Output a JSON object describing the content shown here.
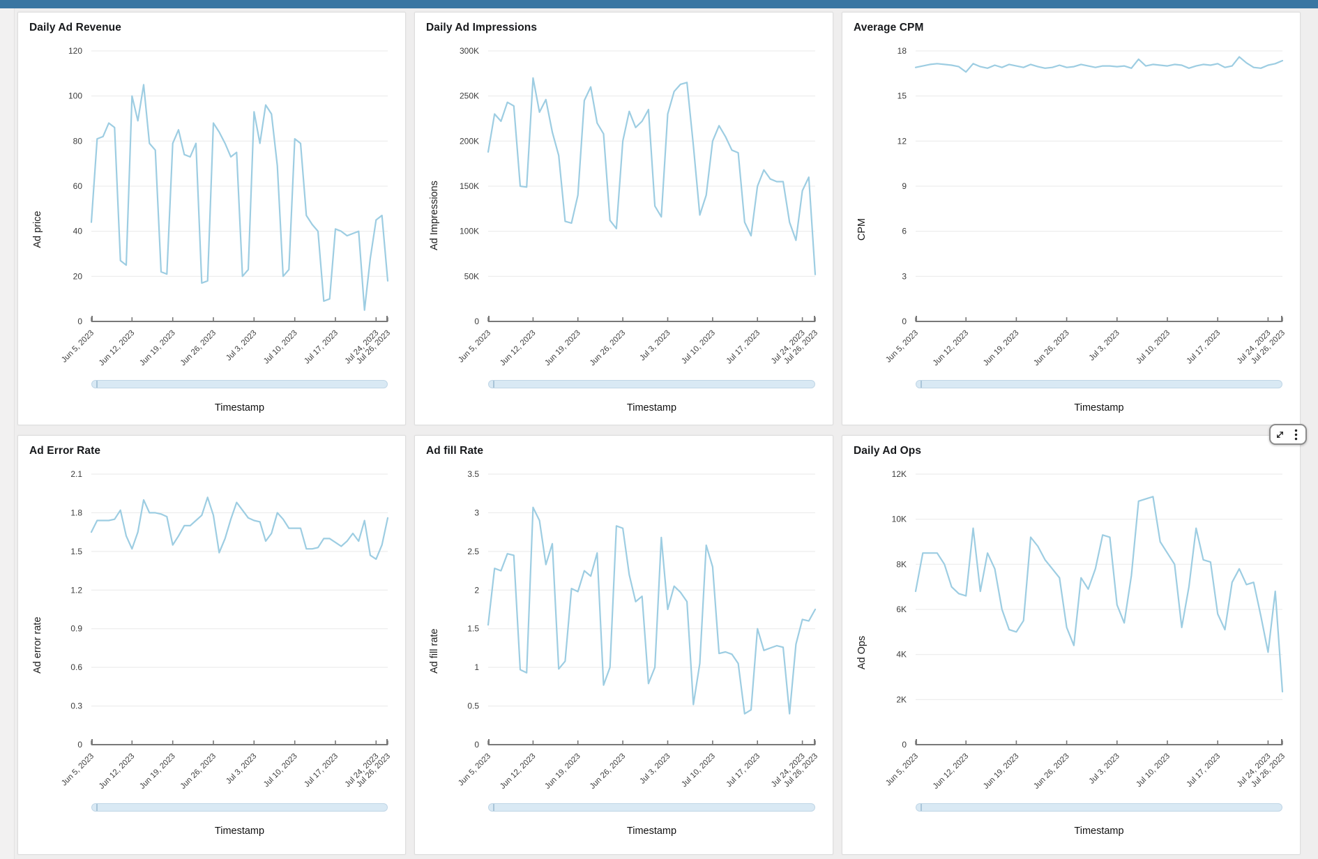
{
  "page": {
    "topbar_color": "#3a76a2",
    "background": "#efeeee",
    "line_color": "#9dcde2",
    "gridline_color": "#e9e9e9",
    "axis_color": "#787878",
    "scrollbar_fill": "#d9e9f4",
    "scrollbar_border": "#c0d6e6"
  },
  "toolbar": {
    "expand_icon": "expand-diagonal-arrows",
    "menu_icon": "kebab-vertical-dots"
  },
  "x_axis": {
    "tick_labels": [
      "Jun 5, 2023",
      "Jun 12, 2023",
      "Jun 19, 2023",
      "Jun 26, 2023",
      "Jul 3, 2023",
      "Jul 10, 2023",
      "Jul 17, 2023",
      "Jul 24, 2023",
      "Jul 26, 2023"
    ],
    "tick_positions": [
      0,
      7,
      14,
      21,
      28,
      35,
      42,
      49,
      51
    ],
    "n_points": 52
  },
  "chart_data": [
    {
      "type": "line",
      "title": "Daily Ad Revenue",
      "xlabel": "Timestamp",
      "ylabel": "Ad price",
      "x_range": [
        "Jun 5, 2023",
        "Jul 26, 2023"
      ],
      "ylim": [
        0,
        120
      ],
      "y_ticks": [
        120,
        100,
        80,
        60,
        40,
        20,
        0
      ],
      "y_tick_labels": [
        "120",
        "100",
        "80",
        "60",
        "40",
        "20",
        "0"
      ],
      "line_color": "#9dcde2",
      "grid": true,
      "legend": "none",
      "values": [
        44,
        81,
        82,
        88,
        86,
        27,
        25,
        100,
        89,
        105,
        79,
        76,
        22,
        21,
        79,
        85,
        74,
        73,
        79,
        17,
        18,
        88,
        84,
        79,
        73,
        75,
        20,
        23,
        93,
        79,
        96,
        92,
        69,
        20,
        23,
        81,
        79,
        47,
        43,
        40,
        9,
        10,
        41,
        40,
        38,
        39,
        40,
        5,
        28,
        45,
        47,
        18
      ]
    },
    {
      "type": "line",
      "title": "Daily Ad Impressions",
      "xlabel": "Timestamp",
      "ylabel": "Ad Impressions",
      "x_range": [
        "Jun 5, 2023",
        "Jul 26, 2023"
      ],
      "unit": "K",
      "ylim": [
        0,
        300
      ],
      "y_ticks": [
        300,
        250,
        200,
        150,
        100,
        50,
        0
      ],
      "y_tick_labels": [
        "300K",
        "250K",
        "200K",
        "150K",
        "100K",
        "50K",
        "0"
      ],
      "line_color": "#9dcde2",
      "grid": true,
      "legend": "none",
      "values": [
        188,
        230,
        222,
        243,
        239,
        150,
        149,
        270,
        232,
        246,
        210,
        184,
        111,
        109,
        140,
        245,
        260,
        220,
        208,
        112,
        103,
        200,
        233,
        215,
        222,
        235,
        128,
        116,
        230,
        255,
        263,
        265,
        195,
        118,
        140,
        200,
        217,
        205,
        190,
        187,
        110,
        95,
        150,
        168,
        158,
        155,
        155,
        110,
        90,
        145,
        160,
        52
      ]
    },
    {
      "type": "line",
      "title": "Average CPM",
      "xlabel": "Timestamp",
      "ylabel": "CPM",
      "x_range": [
        "Jun 5, 2023",
        "Jul 26, 2023"
      ],
      "ylim": [
        0,
        18
      ],
      "y_ticks": [
        18,
        15,
        12,
        9,
        6,
        3,
        0
      ],
      "y_tick_labels": [
        "18",
        "15",
        "12",
        "9",
        "6",
        "3",
        "0"
      ],
      "line_color": "#9dcde2",
      "grid": true,
      "legend": "none",
      "values": [
        16.9,
        17.0,
        17.1,
        17.15,
        17.1,
        17.05,
        16.95,
        16.6,
        17.15,
        16.95,
        16.85,
        17.05,
        16.9,
        17.1,
        17.0,
        16.9,
        17.1,
        16.95,
        16.85,
        16.9,
        17.05,
        16.9,
        16.95,
        17.1,
        17.0,
        16.9,
        17.0,
        17.0,
        16.95,
        17.0,
        16.85,
        17.45,
        17.0,
        17.1,
        17.05,
        17.0,
        17.1,
        17.05,
        16.85,
        17.0,
        17.1,
        17.05,
        17.15,
        16.9,
        17.0,
        17.6,
        17.2,
        16.9,
        16.85,
        17.05,
        17.15,
        17.35
      ]
    },
    {
      "type": "line",
      "title": "Ad Error Rate",
      "xlabel": "Timestamp",
      "ylabel": "Ad error rate",
      "x_range": [
        "Jun 5, 2023",
        "Jul 26, 2023"
      ],
      "ylim": [
        0,
        2.1
      ],
      "y_ticks": [
        2.1,
        1.8,
        1.5,
        1.2,
        0.9,
        0.6,
        0.3,
        0
      ],
      "y_tick_labels": [
        "2.1",
        "1.8",
        "1.5",
        "1.2",
        "0.9",
        "0.6",
        "0.3",
        "0"
      ],
      "line_color": "#9dcde2",
      "grid": true,
      "legend": "none",
      "values": [
        1.65,
        1.74,
        1.74,
        1.74,
        1.75,
        1.82,
        1.62,
        1.52,
        1.65,
        1.9,
        1.8,
        1.8,
        1.79,
        1.77,
        1.55,
        1.62,
        1.7,
        1.7,
        1.74,
        1.78,
        1.92,
        1.78,
        1.49,
        1.6,
        1.75,
        1.88,
        1.82,
        1.76,
        1.74,
        1.73,
        1.58,
        1.64,
        1.8,
        1.75,
        1.68,
        1.68,
        1.68,
        1.52,
        1.52,
        1.53,
        1.6,
        1.6,
        1.57,
        1.54,
        1.58,
        1.64,
        1.58,
        1.74,
        1.47,
        1.44,
        1.55,
        1.76
      ]
    },
    {
      "type": "line",
      "title": "Ad fill Rate",
      "xlabel": "Timestamp",
      "ylabel": "Ad fill rate",
      "x_range": [
        "Jun 5, 2023",
        "Jul 26, 2023"
      ],
      "ylim": [
        0,
        3.5
      ],
      "y_ticks": [
        3.5,
        3,
        2.5,
        2,
        1.5,
        1,
        0.5,
        0
      ],
      "y_tick_labels": [
        "3.5",
        "3",
        "2.5",
        "2",
        "1.5",
        "1",
        "0.5",
        "0"
      ],
      "line_color": "#9dcde2",
      "grid": true,
      "legend": "none",
      "values": [
        1.55,
        2.28,
        2.25,
        2.47,
        2.45,
        0.97,
        0.93,
        3.07,
        2.9,
        2.33,
        2.6,
        0.98,
        1.08,
        2.02,
        1.98,
        2.25,
        2.18,
        2.48,
        0.77,
        1.0,
        2.83,
        2.8,
        2.2,
        1.85,
        1.92,
        0.79,
        1.0,
        2.68,
        1.75,
        2.05,
        1.97,
        1.85,
        0.52,
        1.05,
        2.58,
        2.3,
        1.18,
        1.2,
        1.17,
        1.05,
        0.4,
        0.45,
        1.5,
        1.22,
        1.25,
        1.28,
        1.26,
        0.4,
        1.3,
        1.62,
        1.6,
        1.75
      ]
    },
    {
      "type": "line",
      "title": "Daily Ad Ops",
      "xlabel": "Timestamp",
      "ylabel": "Ad Ops",
      "x_range": [
        "Jun 5, 2023",
        "Jul 26, 2023"
      ],
      "unit": "K",
      "ylim": [
        0,
        12
      ],
      "y_ticks": [
        12,
        10,
        8,
        6,
        4,
        2,
        0
      ],
      "y_tick_labels": [
        "12K",
        "10K",
        "8K",
        "6K",
        "4K",
        "2K",
        "0"
      ],
      "line_color": "#9dcde2",
      "grid": true,
      "legend": "none",
      "values": [
        6.8,
        8.5,
        8.5,
        8.5,
        8.0,
        7.0,
        6.7,
        6.6,
        9.6,
        6.8,
        8.5,
        7.8,
        6.0,
        5.1,
        5.0,
        5.5,
        9.2,
        8.8,
        8.2,
        7.8,
        7.4,
        5.2,
        4.4,
        7.4,
        6.9,
        7.8,
        9.3,
        9.2,
        6.2,
        5.4,
        7.5,
        10.8,
        10.9,
        11.0,
        9.0,
        8.5,
        8.0,
        5.2,
        7.0,
        9.6,
        8.2,
        8.1,
        5.8,
        5.1,
        7.2,
        7.8,
        7.1,
        7.2,
        5.7,
        4.1,
        6.8,
        2.35
      ]
    }
  ]
}
